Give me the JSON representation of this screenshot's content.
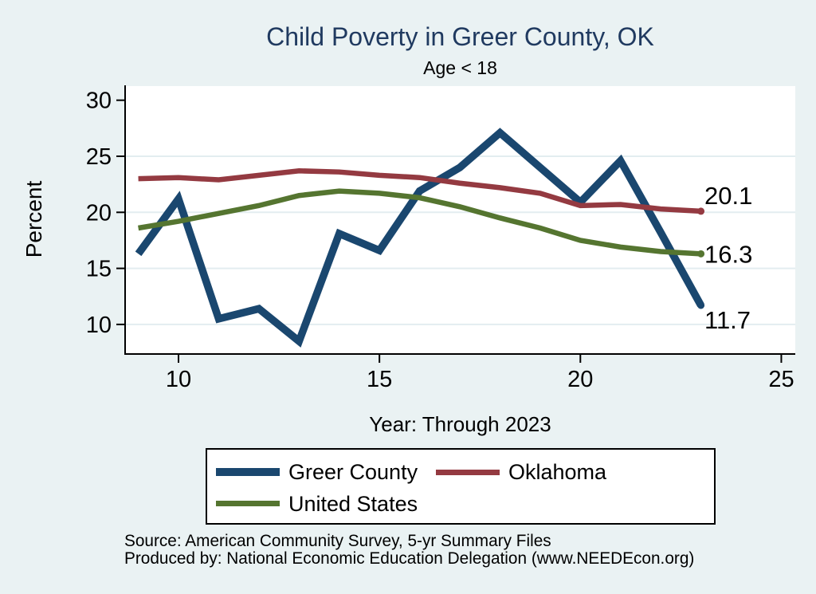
{
  "chart_data": {
    "type": "line",
    "title": "Child Poverty in Greer County, OK",
    "subtitle": "Age < 18",
    "xlabel": "Year: Through 2023",
    "ylabel": "Percent",
    "x": [
      9,
      10,
      11,
      12,
      13,
      14,
      15,
      16,
      17,
      18,
      19,
      20,
      21,
      22,
      23
    ],
    "x_ticks": [
      10,
      15,
      20,
      25
    ],
    "x_tick_labels": [
      "10",
      "15",
      "20",
      "25"
    ],
    "y_ticks": [
      30,
      25,
      20,
      15,
      10
    ],
    "y_tick_labels": [
      "30",
      "25",
      "20",
      "15",
      "10"
    ],
    "y_gridlines": [
      25,
      20,
      15,
      10
    ],
    "xlim": [
      8.7,
      25.4
    ],
    "ylim": [
      7.4,
      31.3
    ],
    "grid": "horizontal",
    "legend_position": "bottom",
    "series": [
      {
        "id": "greer-county",
        "name": "Greer County",
        "color": "#1a476f",
        "line_width": 9.5,
        "values": [
          16.3,
          21.2,
          10.5,
          11.4,
          8.5,
          18.1,
          16.6,
          21.9,
          24.0,
          27.1,
          24.0,
          20.9,
          24.6,
          18.2,
          11.7
        ],
        "end_label": "11.7"
      },
      {
        "id": "oklahoma",
        "name": "Oklahoma",
        "color": "#943a41",
        "line_width": 6.5,
        "values": [
          23.0,
          23.1,
          22.9,
          23.3,
          23.7,
          23.6,
          23.3,
          23.1,
          22.6,
          22.2,
          21.7,
          20.6,
          20.7,
          20.3,
          20.1
        ],
        "end_label": "20.1"
      },
      {
        "id": "united-states",
        "name": "United States",
        "color": "#557530",
        "line_width": 6.5,
        "values": [
          18.6,
          19.2,
          19.9,
          20.6,
          21.5,
          21.9,
          21.7,
          21.3,
          20.5,
          19.5,
          18.6,
          17.5,
          16.9,
          16.5,
          16.3
        ],
        "end_label": "16.3"
      }
    ]
  },
  "footer": {
    "source": "Source: American Community Survey, 5-yr Summary Files",
    "produced_by": "Produced by: National Economic Education Delegation (www.NEEDEcon.org)"
  },
  "colors": {
    "background": "#eaf2f3",
    "plot_background": "#ffffff",
    "gridline": "#e3edf0",
    "axis": "#000000",
    "title_text": "#203a60",
    "text": "#000000"
  }
}
